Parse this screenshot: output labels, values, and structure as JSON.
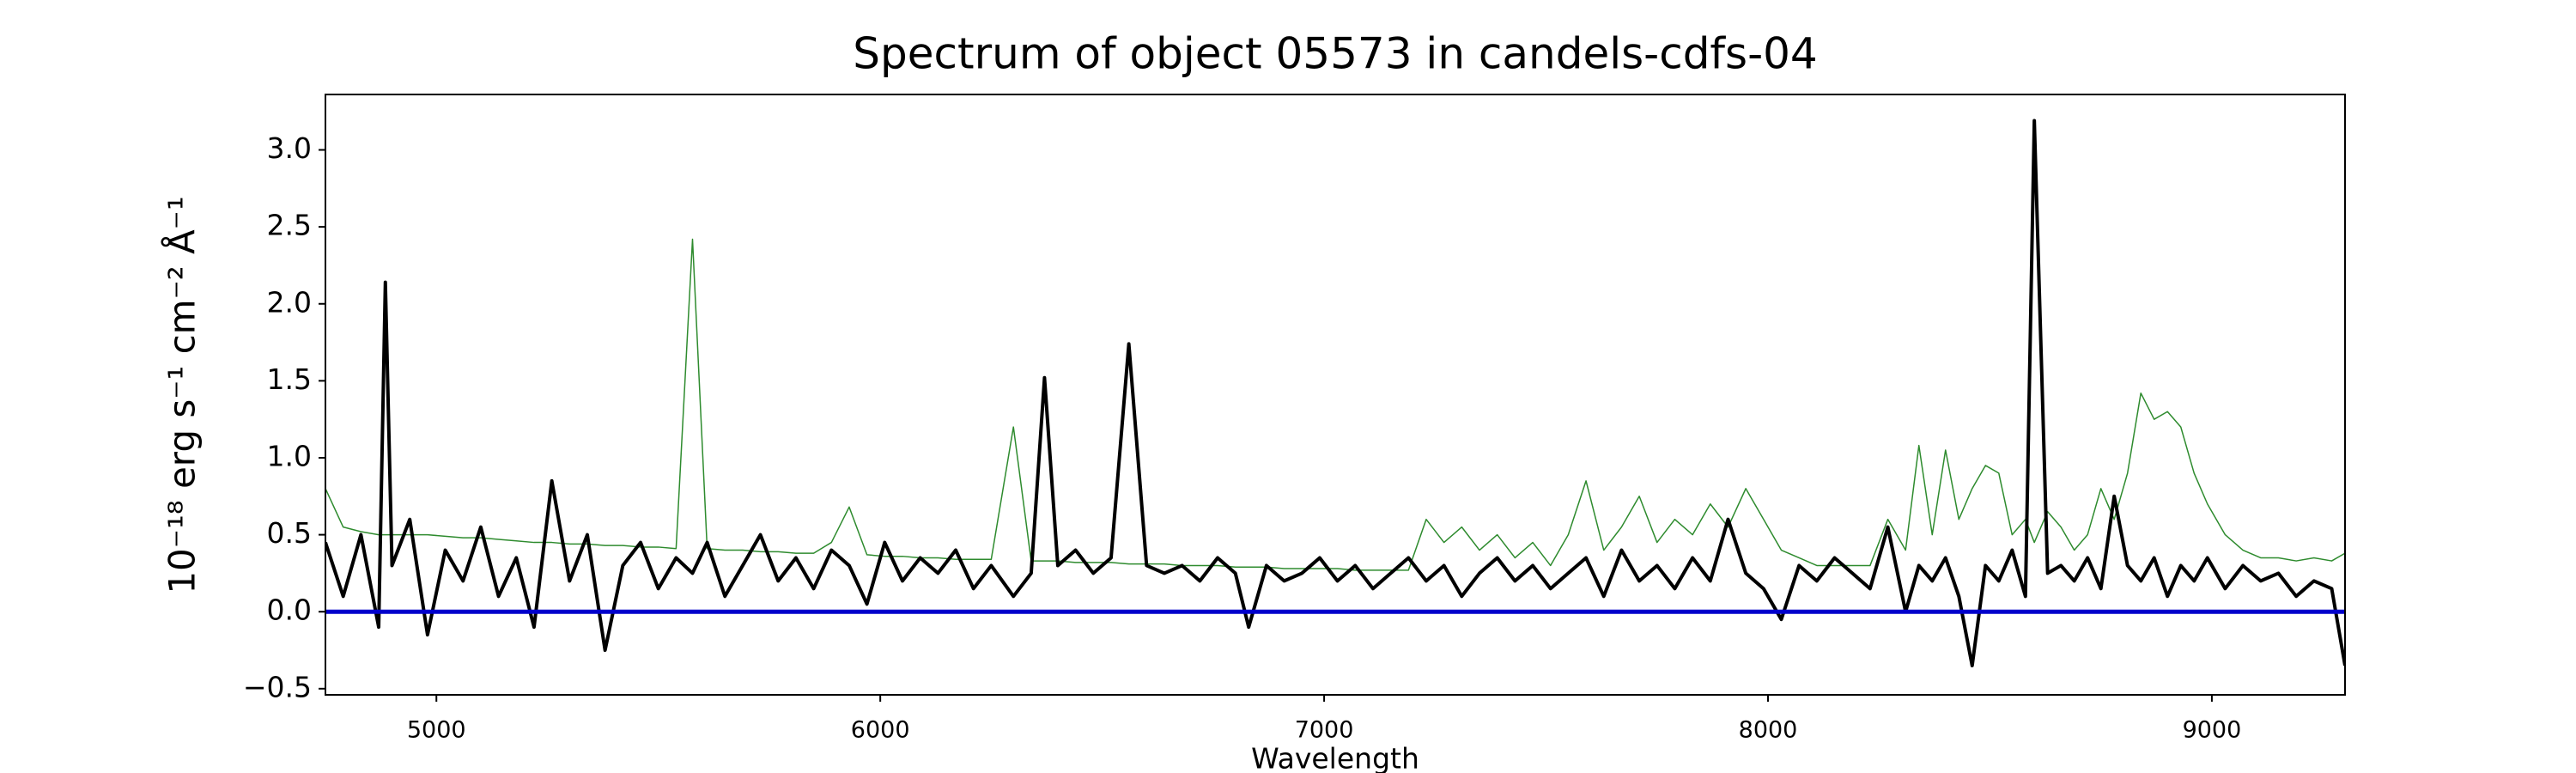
{
  "chart_data": {
    "type": "line",
    "title": "Spectrum of object 05573 in candels-cdfs-04",
    "x_label": "Wavelength",
    "y_label": "10⁻¹⁸ erg s⁻¹ cm⁻² Å⁻¹",
    "x": [
      4750,
      4790,
      4830,
      4870,
      4885,
      4900,
      4940,
      4980,
      5020,
      5060,
      5100,
      5140,
      5180,
      5220,
      5260,
      5300,
      5340,
      5380,
      5420,
      5460,
      5500,
      5540,
      5577,
      5610,
      5650,
      5690,
      5730,
      5770,
      5810,
      5850,
      5890,
      5930,
      5970,
      6010,
      6050,
      6090,
      6130,
      6170,
      6210,
      6250,
      6300,
      6340,
      6370,
      6400,
      6440,
      6480,
      6520,
      6560,
      6600,
      6640,
      6680,
      6720,
      6760,
      6800,
      6830,
      6870,
      6910,
      6950,
      6990,
      7030,
      7070,
      7110,
      7150,
      7190,
      7230,
      7270,
      7310,
      7350,
      7390,
      7430,
      7470,
      7510,
      7550,
      7590,
      7630,
      7670,
      7710,
      7750,
      7790,
      7830,
      7870,
      7910,
      7950,
      7990,
      8030,
      8070,
      8110,
      8150,
      8190,
      8230,
      8270,
      8310,
      8340,
      8370,
      8400,
      8430,
      8460,
      8490,
      8520,
      8550,
      8580,
      8600,
      8630,
      8660,
      8690,
      8720,
      8750,
      8780,
      8810,
      8840,
      8870,
      8900,
      8930,
      8960,
      8990,
      9030,
      9070,
      9110,
      9150,
      9190,
      9230,
      9270,
      9300
    ],
    "series": [
      {
        "color": "#2e8b2e",
        "width": 1.5,
        "values": [
          0.8,
          0.55,
          0.52,
          0.5,
          0.5,
          0.5,
          0.5,
          0.5,
          0.49,
          0.48,
          0.48,
          0.47,
          0.46,
          0.45,
          0.45,
          0.44,
          0.44,
          0.43,
          0.43,
          0.42,
          0.42,
          0.41,
          2.42,
          0.41,
          0.4,
          0.4,
          0.39,
          0.39,
          0.38,
          0.38,
          0.45,
          0.68,
          0.37,
          0.36,
          0.36,
          0.35,
          0.35,
          0.34,
          0.34,
          0.34,
          1.2,
          0.33,
          0.33,
          0.33,
          0.32,
          0.32,
          0.32,
          0.31,
          0.31,
          0.31,
          0.3,
          0.3,
          0.3,
          0.29,
          0.29,
          0.29,
          0.28,
          0.28,
          0.28,
          0.28,
          0.27,
          0.27,
          0.27,
          0.27,
          0.6,
          0.45,
          0.55,
          0.4,
          0.5,
          0.35,
          0.45,
          0.3,
          0.5,
          0.85,
          0.4,
          0.55,
          0.75,
          0.45,
          0.6,
          0.5,
          0.7,
          0.55,
          0.8,
          0.6,
          0.4,
          0.35,
          0.3,
          0.3,
          0.3,
          0.3,
          0.6,
          0.4,
          1.08,
          0.5,
          1.05,
          0.6,
          0.8,
          0.95,
          0.9,
          0.5,
          0.6,
          0.45,
          0.65,
          0.55,
          0.4,
          0.5,
          0.8,
          0.6,
          0.9,
          1.42,
          1.25,
          1.3,
          1.2,
          0.9,
          0.7,
          0.5,
          0.4,
          0.35,
          0.35,
          0.33,
          0.35,
          0.33,
          0.38
        ]
      },
      {
        "color": "#000000",
        "width": 4,
        "values": [
          0.45,
          0.1,
          0.5,
          -0.1,
          2.14,
          0.3,
          0.6,
          -0.15,
          0.4,
          0.2,
          0.55,
          0.1,
          0.35,
          -0.1,
          0.85,
          0.2,
          0.5,
          -0.25,
          0.3,
          0.45,
          0.15,
          0.35,
          0.25,
          0.45,
          0.1,
          0.3,
          0.5,
          0.2,
          0.35,
          0.15,
          0.4,
          0.3,
          0.05,
          0.45,
          0.2,
          0.35,
          0.25,
          0.4,
          0.15,
          0.3,
          0.1,
          0.25,
          1.52,
          0.3,
          0.4,
          0.25,
          0.35,
          1.74,
          0.3,
          0.25,
          0.3,
          0.2,
          0.35,
          0.25,
          -0.1,
          0.3,
          0.2,
          0.25,
          0.35,
          0.2,
          0.3,
          0.15,
          0.25,
          0.35,
          0.2,
          0.3,
          0.1,
          0.25,
          0.35,
          0.2,
          0.3,
          0.15,
          0.25,
          0.35,
          0.1,
          0.4,
          0.2,
          0.3,
          0.15,
          0.35,
          0.2,
          0.6,
          0.25,
          0.15,
          -0.05,
          0.3,
          0.2,
          0.35,
          0.25,
          0.15,
          0.55,
          0.0,
          0.3,
          0.2,
          0.35,
          0.1,
          -0.35,
          0.3,
          0.2,
          0.4,
          0.1,
          3.19,
          0.25,
          0.3,
          0.2,
          0.35,
          0.15,
          0.75,
          0.3,
          0.2,
          0.35,
          0.1,
          0.3,
          0.2,
          0.35,
          0.15,
          0.3,
          0.2,
          0.25,
          0.1,
          0.2,
          0.15,
          -0.35
        ]
      }
    ],
    "hlines": [
      {
        "y": 0,
        "color": "#0000cc"
      }
    ],
    "xlim": [
      4750,
      9300
    ],
    "ylim": [
      -0.54,
      3.36
    ],
    "xticks": [
      5000,
      6000,
      7000,
      8000,
      9000
    ],
    "yticks": [
      {
        "value": -0.5,
        "label": "−0.5"
      },
      {
        "value": 0,
        "label": "0.0"
      },
      {
        "value": 0.5,
        "label": "0.5"
      },
      {
        "value": 1,
        "label": "1.0"
      },
      {
        "value": 1.5,
        "label": "1.5"
      },
      {
        "value": 2,
        "label": "2.0"
      },
      {
        "value": 2.5,
        "label": "2.5"
      },
      {
        "value": 3,
        "label": "3.0"
      }
    ]
  }
}
